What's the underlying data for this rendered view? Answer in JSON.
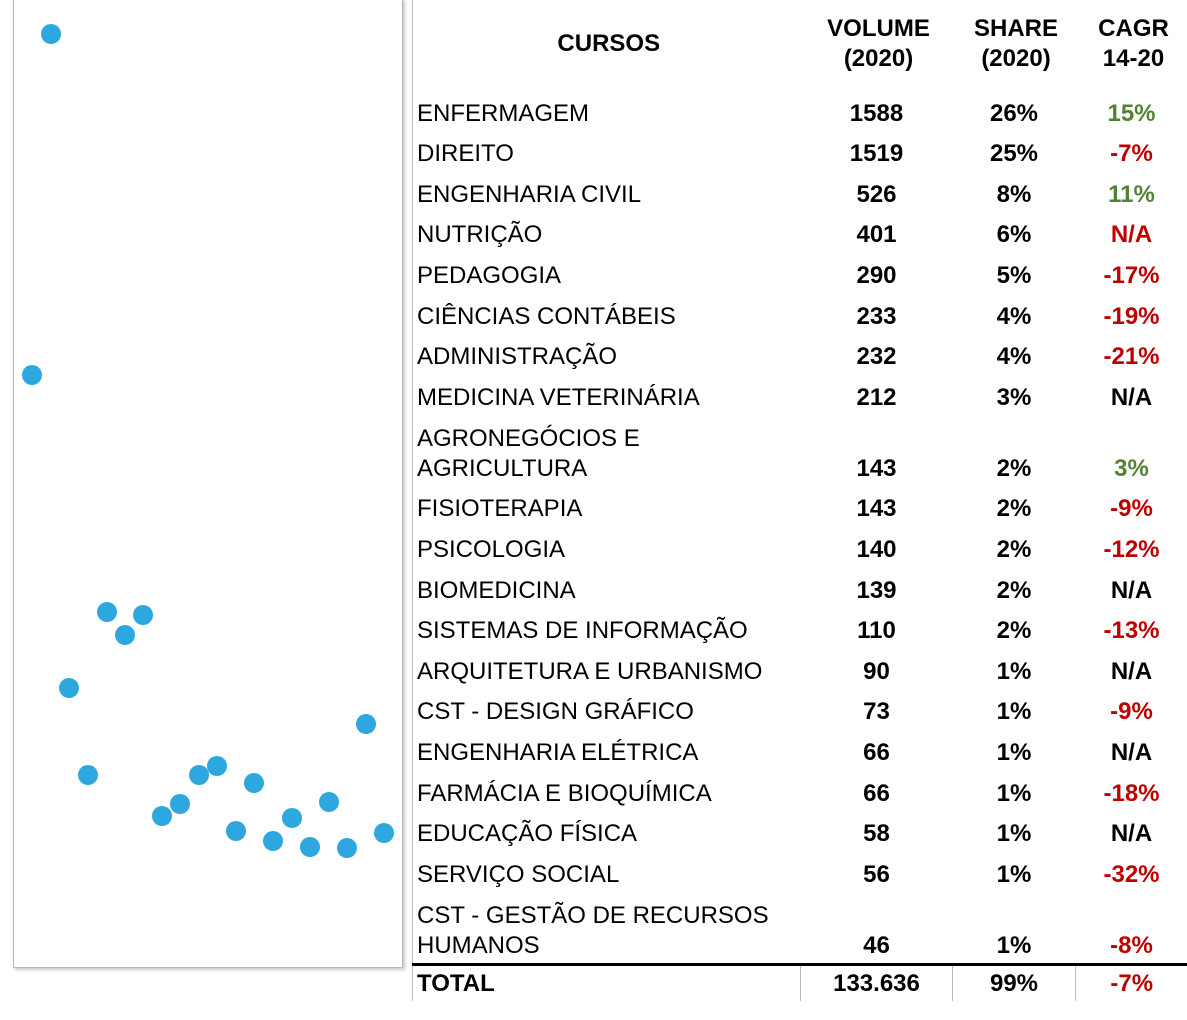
{
  "table": {
    "header": [
      "CURSOS",
      "VOLUME (2020)",
      "SHARE (2020)",
      "CAGR 14-20"
    ],
    "rows": [
      [
        "ENFERMAGEM",
        "1588",
        "26%",
        "15%"
      ],
      [
        "DIREITO",
        "1519",
        "25%",
        "-7%"
      ],
      [
        "ENGENHARIA CIVIL",
        "526",
        "8%",
        "11%"
      ],
      [
        "NUTRIÇÃO",
        "401",
        "6%",
        "N/A"
      ],
      [
        "PEDAGOGIA",
        "290",
        "5%",
        "-17%"
      ],
      [
        "CIÊNCIAS CONTÁBEIS",
        "233",
        "4%",
        "-19%"
      ],
      [
        "ADMINISTRAÇÃO",
        "232",
        "4%",
        "-21%"
      ],
      [
        "MEDICINA VETERINÁRIA",
        "212",
        "3%",
        "N/A"
      ],
      [
        "AGRONEGÓCIOS E AGRICULTURA",
        "143",
        "2%",
        "3%"
      ],
      [
        "FISIOTERAPIA",
        "143",
        "2%",
        "-9%"
      ],
      [
        "PSICOLOGIA",
        "140",
        "2%",
        "-12%"
      ],
      [
        "BIOMEDICINA",
        "139",
        "2%",
        "N/A"
      ],
      [
        "SISTEMAS DE INFORMAÇÃO",
        "110",
        "2%",
        "-13%"
      ],
      [
        "ARQUITETURA E URBANISMO",
        "90",
        "1%",
        "N/A"
      ],
      [
        "CST - DESIGN GRÁFICO",
        "73",
        "1%",
        "-9%"
      ],
      [
        "ENGENHARIA ELÉTRICA",
        "66",
        "1%",
        "N/A"
      ],
      [
        "FARMÁCIA E BIOQUÍMICA",
        "66",
        "1%",
        "-18%"
      ],
      [
        "EDUCAÇÃO FÍSICA",
        "58",
        "1%",
        "N/A"
      ],
      [
        "SERVIÇO SOCIAL",
        "56",
        "1%",
        "-32%"
      ],
      [
        "CST - GESTÃO DE RECURSOS HUMANOS",
        "46",
        "1%",
        "-8%"
      ]
    ],
    "cagr_colors": [
      "#548235",
      "#c00000",
      "#548235",
      "#c00000",
      "#c00000",
      "#c00000",
      "#c00000",
      "#000000",
      "#548235",
      "#c00000",
      "#c00000",
      "#000000",
      "#c00000",
      "#000000",
      "#c00000",
      "#000000",
      "#c00000",
      "#000000",
      "#c00000",
      "#c00000"
    ],
    "total": [
      "TOTAL",
      "133.636",
      "99%",
      "-7%"
    ],
    "total_cagr_color": "#c00000"
  }
}
